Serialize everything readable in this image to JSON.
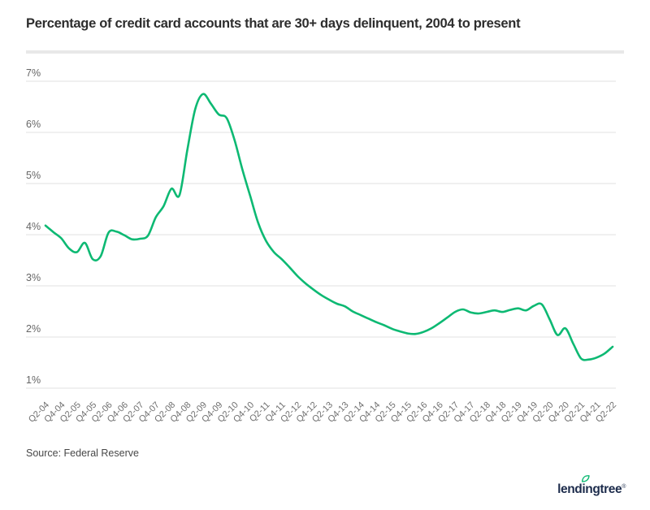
{
  "header": {
    "title": "Percentage of credit card accounts that are 30+ days delinquent, 2004 to present"
  },
  "footer": {
    "source": "Source: Federal Reserve",
    "logo_text": "lendingtree",
    "logo_mark": "®"
  },
  "colors": {
    "line_green": "#0db973",
    "grid_gray": "#e1e1e1",
    "axis_label_gray": "#6f6f6f",
    "title_dark": "#2d2d2d",
    "logo_navy": "#1d2c4c"
  },
  "chart_data": {
    "type": "line",
    "title": "Percentage of credit card accounts that are 30+ days delinquent, 2004 to present",
    "xlabel": "",
    "ylabel": "",
    "ylim": [
      1,
      7
    ],
    "grid": "horizontal-only",
    "legend": "none",
    "y_ticks": [
      "1%",
      "2%",
      "3%",
      "4%",
      "5%",
      "6%",
      "7%"
    ],
    "x_tick_labels": [
      "Q2-04",
      "Q4-04",
      "Q2-05",
      "Q4-05",
      "Q2-06",
      "Q4-06",
      "Q2-07",
      "Q4-07",
      "Q2-08",
      "Q4-08",
      "Q2-09",
      "Q4-09",
      "Q2-10",
      "Q4-10",
      "Q2-11",
      "Q4-11",
      "Q2-12",
      "Q4-12",
      "Q2-13",
      "Q4-13",
      "Q2-14",
      "Q4-14",
      "Q2-15",
      "Q4-15",
      "Q2-16",
      "Q4-16",
      "Q2-17",
      "Q4-17",
      "Q2-18",
      "Q4-18",
      "Q2-19",
      "Q4-19",
      "Q2-20",
      "Q4-20",
      "Q2-21",
      "Q4-21",
      "Q2-22"
    ],
    "tick_every": 2,
    "categories": [
      "Q2-04",
      "Q3-04",
      "Q4-04",
      "Q1-05",
      "Q2-05",
      "Q3-05",
      "Q4-05",
      "Q1-06",
      "Q2-06",
      "Q3-06",
      "Q4-06",
      "Q1-07",
      "Q2-07",
      "Q3-07",
      "Q4-07",
      "Q1-08",
      "Q2-08",
      "Q3-08",
      "Q4-08",
      "Q1-09",
      "Q2-09",
      "Q3-09",
      "Q4-09",
      "Q1-10",
      "Q2-10",
      "Q3-10",
      "Q4-10",
      "Q1-11",
      "Q2-11",
      "Q3-11",
      "Q4-11",
      "Q1-12",
      "Q2-12",
      "Q3-12",
      "Q4-12",
      "Q1-13",
      "Q2-13",
      "Q3-13",
      "Q4-13",
      "Q1-14",
      "Q2-14",
      "Q3-14",
      "Q4-14",
      "Q1-15",
      "Q2-15",
      "Q3-15",
      "Q4-15",
      "Q1-16",
      "Q2-16",
      "Q3-16",
      "Q4-16",
      "Q1-17",
      "Q2-17",
      "Q3-17",
      "Q4-17",
      "Q1-18",
      "Q2-18",
      "Q3-18",
      "Q4-18",
      "Q1-19",
      "Q2-19",
      "Q3-19",
      "Q4-19",
      "Q1-20",
      "Q2-20",
      "Q3-20",
      "Q4-20",
      "Q1-21",
      "Q2-21",
      "Q3-21",
      "Q4-21",
      "Q1-22",
      "Q2-22"
    ],
    "series": [
      {
        "name": "30+ day credit card delinquency rate (%)",
        "color": "#0db973",
        "values": [
          4.18,
          4.05,
          3.93,
          3.73,
          3.66,
          3.84,
          3.52,
          3.58,
          4.04,
          4.06,
          3.99,
          3.91,
          3.92,
          3.98,
          4.34,
          4.56,
          4.9,
          4.77,
          5.65,
          6.45,
          6.75,
          6.56,
          6.35,
          6.28,
          5.85,
          5.27,
          4.75,
          4.23,
          3.88,
          3.66,
          3.52,
          3.36,
          3.19,
          3.05,
          2.93,
          2.82,
          2.73,
          2.65,
          2.6,
          2.5,
          2.43,
          2.36,
          2.29,
          2.23,
          2.16,
          2.11,
          2.07,
          2.06,
          2.1,
          2.17,
          2.27,
          2.38,
          2.49,
          2.54,
          2.48,
          2.46,
          2.49,
          2.52,
          2.49,
          2.53,
          2.56,
          2.52,
          2.61,
          2.64,
          2.35,
          2.04,
          2.17,
          1.87,
          1.58,
          1.56,
          1.6,
          1.68,
          1.81
        ]
      }
    ]
  }
}
